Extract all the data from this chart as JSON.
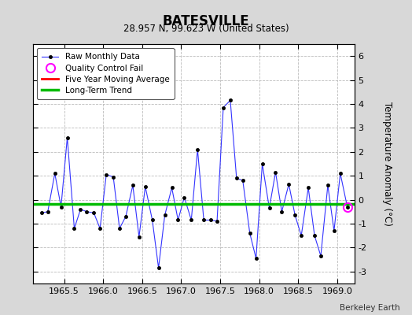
{
  "title": "BATESVILLE",
  "subtitle": "28.957 N, 99.623 W (United States)",
  "ylabel": "Temperature Anomaly (°C)",
  "credit": "Berkeley Earth",
  "ylim": [
    -3.5,
    6.5
  ],
  "xlim": [
    1965.1,
    1969.22
  ],
  "xticks": [
    1965.5,
    1966.0,
    1966.5,
    1967.0,
    1967.5,
    1968.0,
    1968.5,
    1969.0
  ],
  "yticks": [
    -3,
    -2,
    -1,
    0,
    1,
    2,
    3,
    4,
    5,
    6
  ],
  "raw_x": [
    1965.21,
    1965.29,
    1965.38,
    1965.46,
    1965.54,
    1965.63,
    1965.71,
    1965.79,
    1965.88,
    1965.96,
    1966.04,
    1966.13,
    1966.21,
    1966.29,
    1966.38,
    1966.46,
    1966.54,
    1966.63,
    1966.71,
    1966.79,
    1966.88,
    1966.96,
    1967.04,
    1967.13,
    1967.21,
    1967.29,
    1967.38,
    1967.46,
    1967.54,
    1967.63,
    1967.71,
    1967.79,
    1967.88,
    1967.96,
    1968.04,
    1968.13,
    1968.21,
    1968.29,
    1968.38,
    1968.46,
    1968.54,
    1968.63,
    1968.71,
    1968.79,
    1968.88,
    1968.96,
    1969.04,
    1969.13
  ],
  "raw_y": [
    -0.55,
    -0.5,
    1.1,
    -0.3,
    2.6,
    -1.2,
    -0.4,
    -0.5,
    -0.55,
    -1.2,
    1.05,
    0.95,
    -1.2,
    -0.7,
    0.6,
    -1.55,
    0.55,
    -0.85,
    -2.85,
    -0.65,
    0.5,
    -0.85,
    0.1,
    -0.85,
    2.1,
    -0.85,
    -0.85,
    -0.9,
    3.85,
    4.15,
    0.9,
    0.8,
    -1.4,
    -2.45,
    1.5,
    -0.35,
    1.15,
    -0.5,
    0.65,
    -0.65,
    -1.5,
    0.5,
    -1.5,
    -2.35,
    0.6,
    -1.3,
    1.1,
    -0.3
  ],
  "qc_fail_x": [
    1969.13
  ],
  "qc_fail_y": [
    -0.3
  ],
  "trend_x": [
    1965.1,
    1969.22
  ],
  "trend_y": [
    -0.18,
    -0.18
  ],
  "line_color": "#3333ff",
  "marker_color": "#000000",
  "trend_color": "#00bb00",
  "moving_avg_color": "#ff0000",
  "qc_color": "#ff00ff",
  "bg_color": "#d8d8d8",
  "plot_bg_color": "#ffffff",
  "grid_color": "#bbbbbb"
}
